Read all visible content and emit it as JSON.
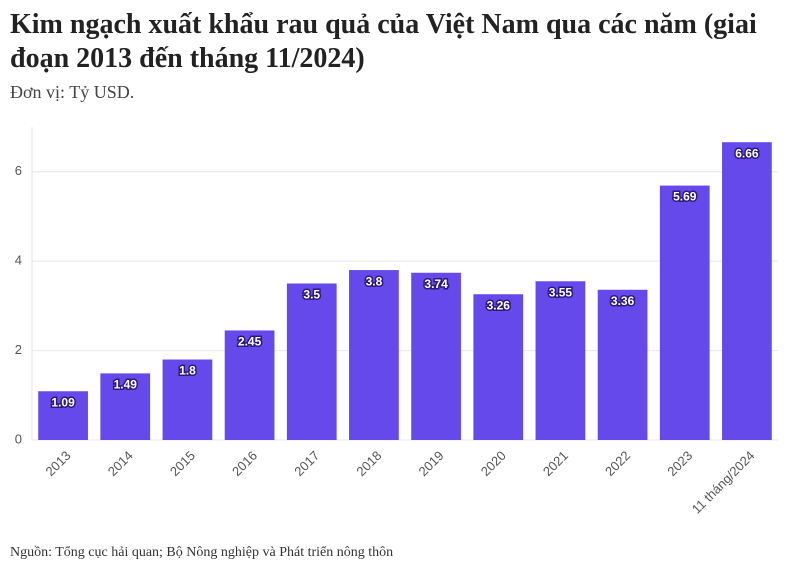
{
  "chart_data": {
    "type": "bar",
    "title": "Kim ngạch xuất khẩu rau quả của Việt Nam qua các năm (giai đoạn 2013 đến tháng 11/2024)",
    "subtitle": "Đơn vị: Tỷ USD.",
    "source": "Nguồn: Tổng cục hải quan; Bộ Nông nghiệp và Phát triển nông thôn",
    "categories": [
      "2013",
      "2014",
      "2015",
      "2016",
      "2017",
      "2018",
      "2019",
      "2020",
      "2021",
      "2022",
      "2023",
      "11 tháng/2024"
    ],
    "values": [
      1.09,
      1.49,
      1.8,
      2.45,
      3.5,
      3.8,
      3.74,
      3.26,
      3.55,
      3.36,
      5.69,
      6.66
    ],
    "color": "#6549ea",
    "ylim": [
      0,
      7
    ],
    "yticks": [
      0,
      2,
      4,
      6
    ],
    "grid": true
  }
}
